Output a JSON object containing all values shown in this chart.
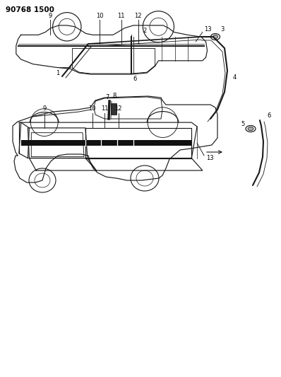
{
  "title_code": "90768 1500",
  "bg_color": "#ffffff",
  "line_color": "#1a1a1a",
  "fig_width": 3.98,
  "fig_height": 5.33,
  "dpi": 100
}
